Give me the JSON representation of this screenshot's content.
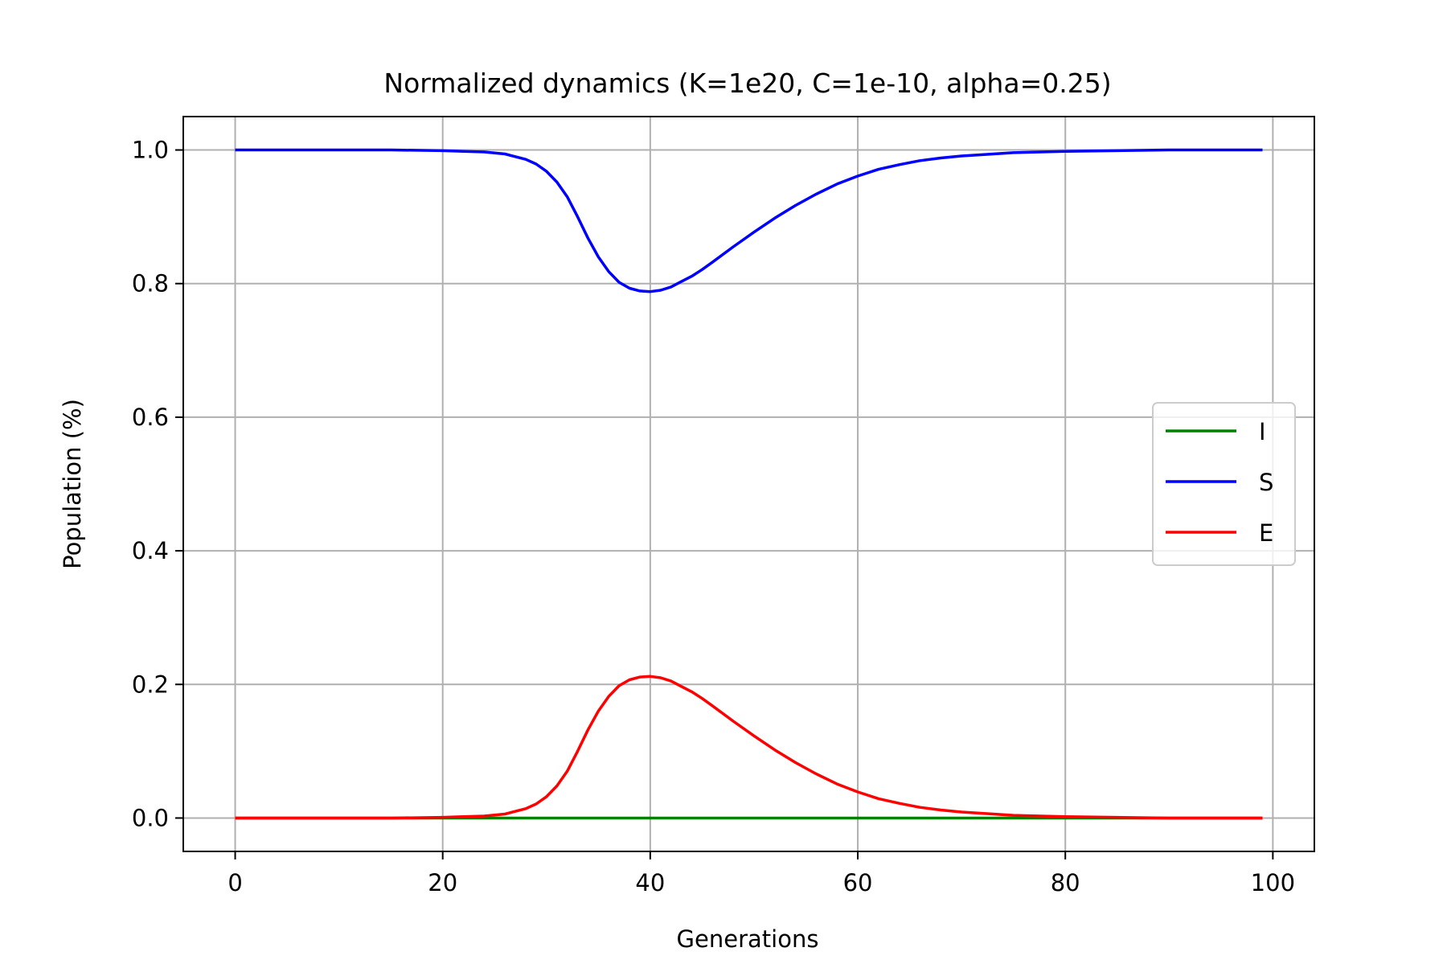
{
  "chart_data": {
    "type": "line",
    "title": "Normalized dynamics (K=1e20, C=1e-10, alpha=0.25)",
    "xlabel": "Generations",
    "ylabel": "Population (%)",
    "xlim": [
      -5,
      104
    ],
    "ylim": [
      -0.05,
      1.05
    ],
    "xticks": [
      0,
      20,
      40,
      60,
      80,
      100
    ],
    "xtick_labels": [
      "0",
      "20",
      "40",
      "60",
      "80",
      "100"
    ],
    "yticks": [
      0.0,
      0.2,
      0.4,
      0.6,
      0.8,
      1.0
    ],
    "ytick_labels": [
      "0.0",
      "0.2",
      "0.4",
      "0.6",
      "0.8",
      "1.0"
    ],
    "grid": true,
    "legend_position": "center-right",
    "x": [
      0,
      5,
      10,
      15,
      20,
      22,
      24,
      26,
      28,
      29,
      30,
      31,
      32,
      33,
      34,
      35,
      36,
      37,
      38,
      39,
      40,
      41,
      42,
      43,
      44,
      45,
      46,
      48,
      50,
      52,
      54,
      56,
      58,
      60,
      62,
      64,
      66,
      68,
      70,
      72,
      75,
      80,
      85,
      90,
      95,
      99
    ],
    "series": [
      {
        "name": "I",
        "color": "#008000",
        "values": [
          0,
          0,
          0,
          0,
          0,
          0,
          0,
          0,
          0,
          0,
          0,
          0,
          0,
          0,
          0,
          0,
          0,
          0,
          0,
          0,
          0,
          0,
          0,
          0,
          0,
          0,
          0,
          0,
          0,
          0,
          0,
          0,
          0,
          0,
          0,
          0,
          0,
          0,
          0,
          0,
          0,
          0,
          0,
          0,
          0,
          0
        ]
      },
      {
        "name": "S",
        "color": "#0000ff",
        "values": [
          1.0,
          1.0,
          1.0,
          1.0,
          0.999,
          0.998,
          0.997,
          0.994,
          0.986,
          0.979,
          0.968,
          0.952,
          0.93,
          0.9,
          0.868,
          0.84,
          0.818,
          0.802,
          0.793,
          0.789,
          0.788,
          0.79,
          0.795,
          0.803,
          0.811,
          0.821,
          0.832,
          0.855,
          0.877,
          0.898,
          0.917,
          0.934,
          0.949,
          0.961,
          0.971,
          0.978,
          0.984,
          0.988,
          0.991,
          0.993,
          0.996,
          0.998,
          0.999,
          1.0,
          1.0,
          1.0
        ]
      },
      {
        "name": "E",
        "color": "#ff0000",
        "values": [
          0,
          0,
          0,
          0,
          0.001,
          0.002,
          0.003,
          0.006,
          0.014,
          0.021,
          0.032,
          0.048,
          0.07,
          0.1,
          0.132,
          0.16,
          0.182,
          0.198,
          0.207,
          0.211,
          0.212,
          0.21,
          0.205,
          0.197,
          0.189,
          0.179,
          0.168,
          0.145,
          0.123,
          0.102,
          0.083,
          0.066,
          0.051,
          0.039,
          0.029,
          0.022,
          0.016,
          0.012,
          0.009,
          0.007,
          0.004,
          0.002,
          0.001,
          0,
          0,
          0
        ]
      }
    ]
  }
}
